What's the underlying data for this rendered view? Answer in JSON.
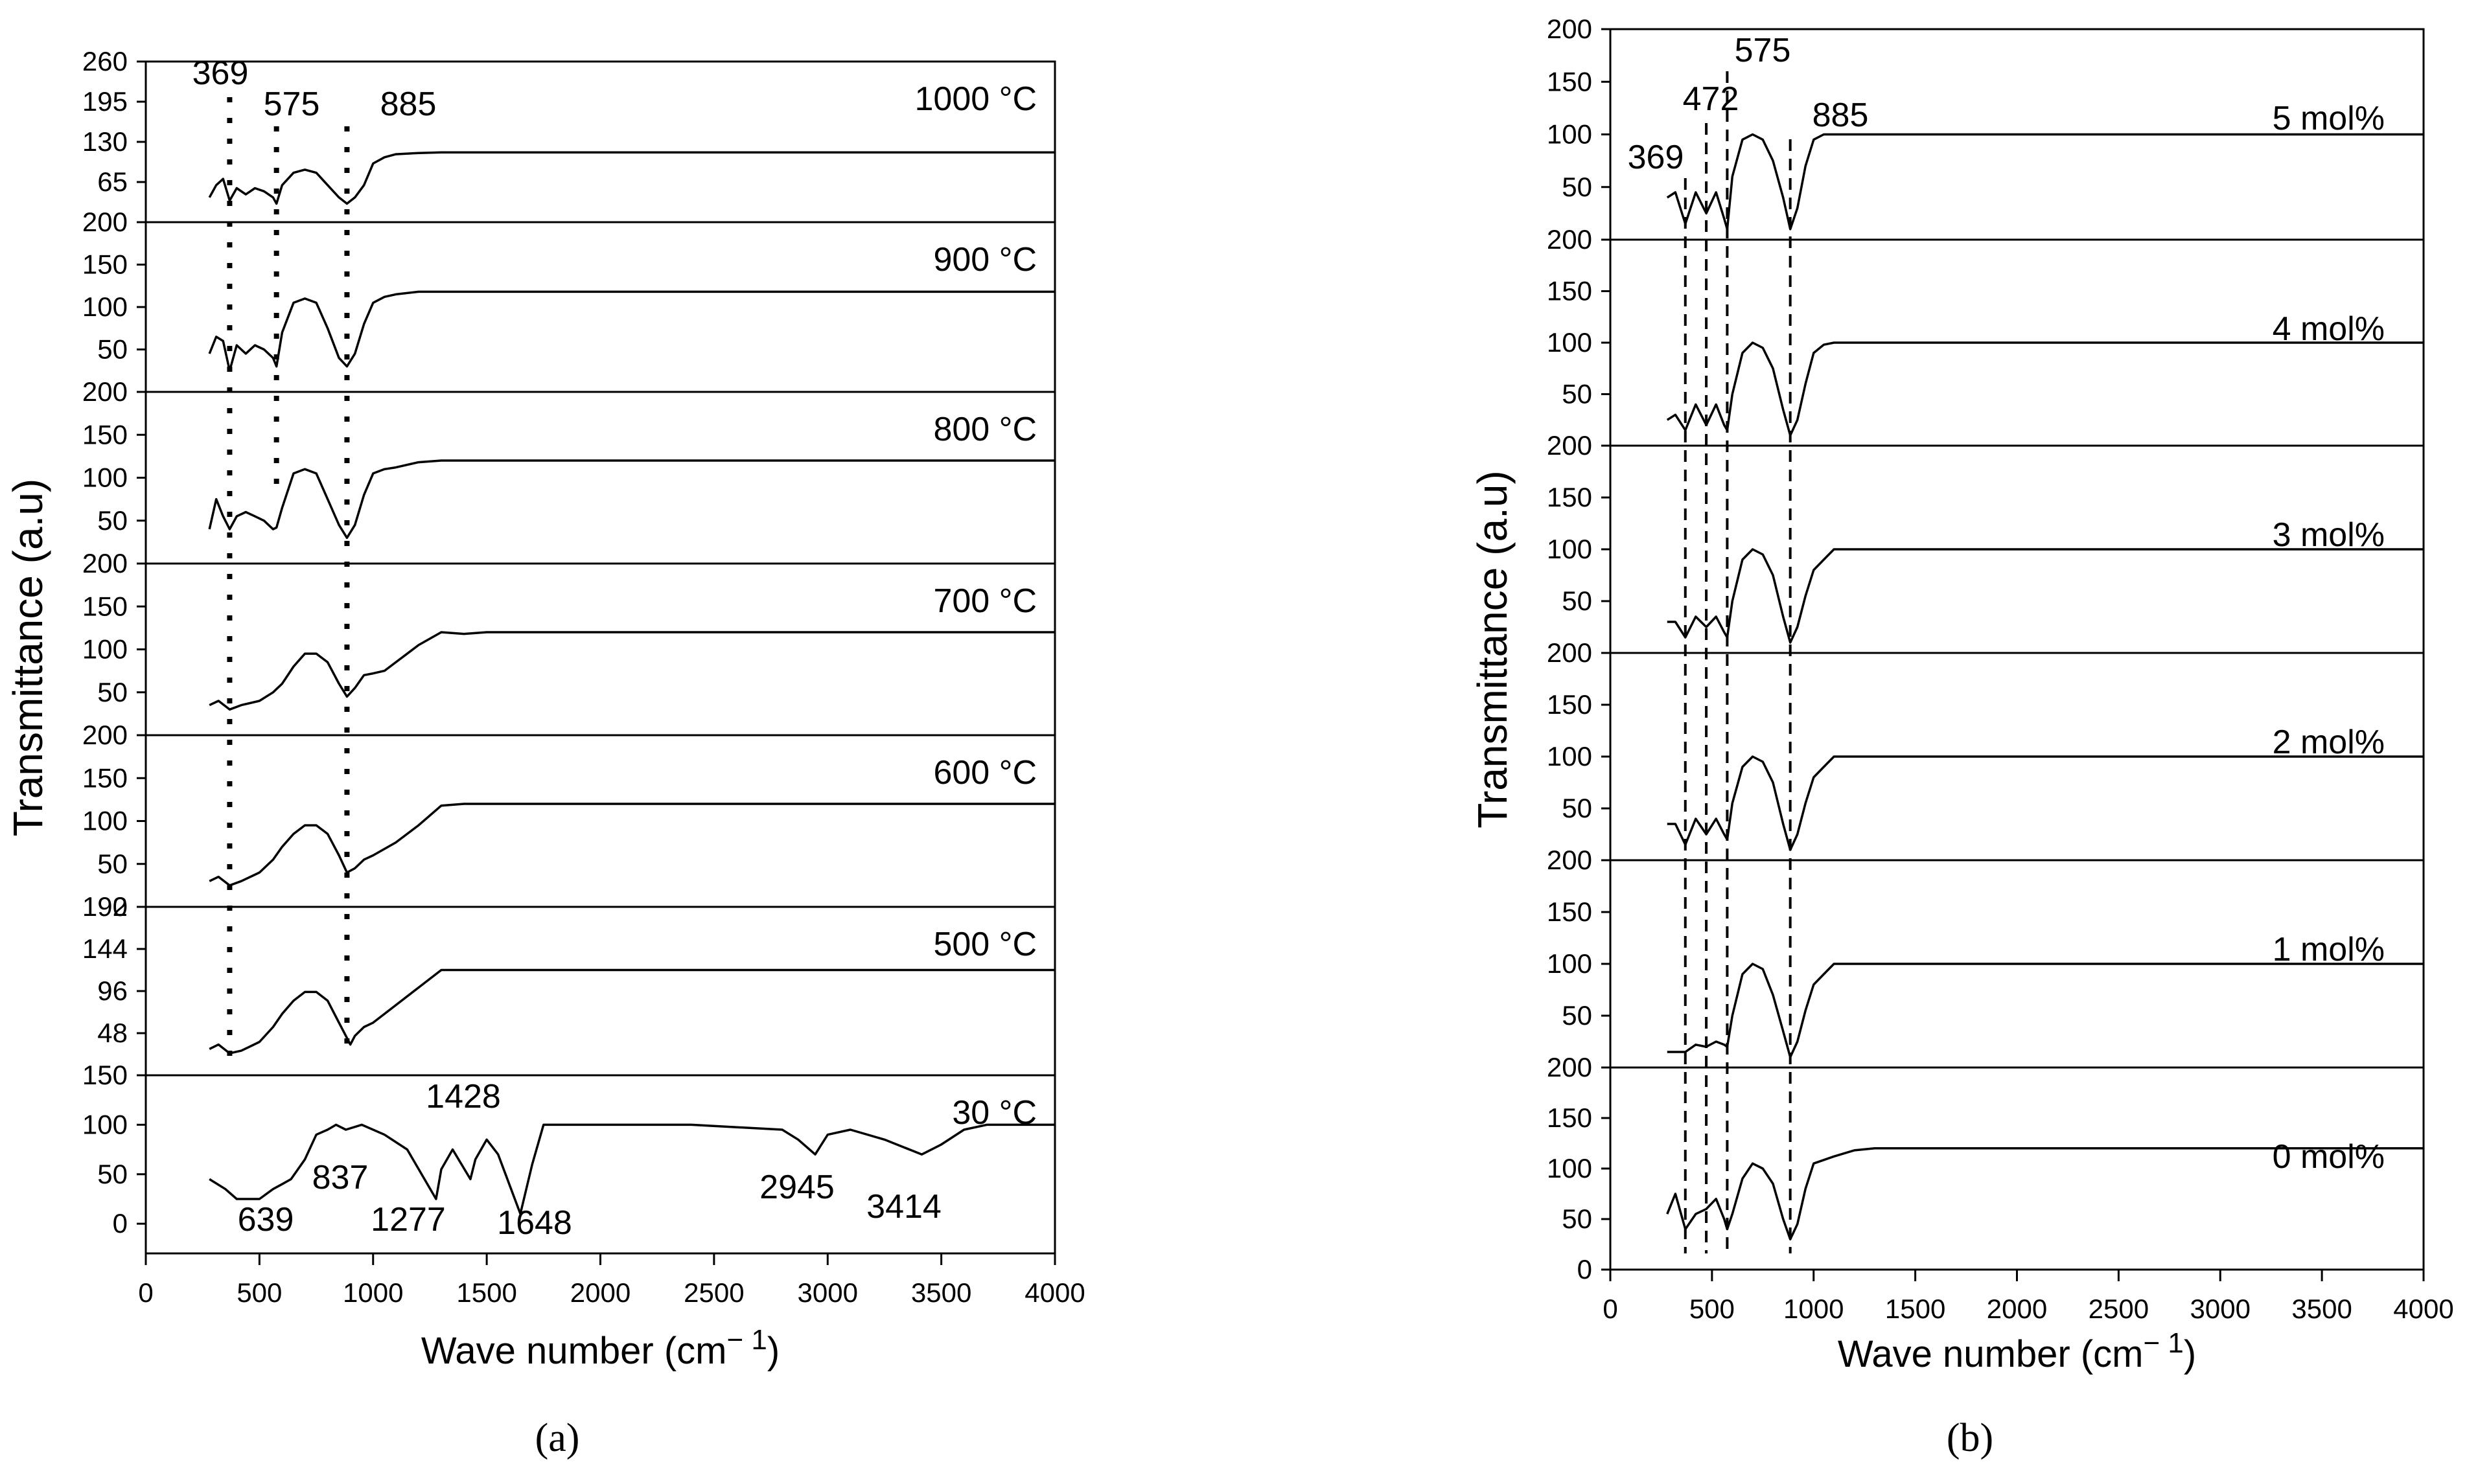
{
  "figure": {
    "caption_a": "(a)",
    "caption_b": "(b)"
  },
  "chart_data": [
    {
      "type": "line",
      "panel": "a",
      "title": "",
      "xlabel": "Wave number (cm⁻¹)",
      "xlabel_main": "Wave number (cm",
      "xlabel_sup": "− 1",
      "xlabel_close": ")",
      "ylabel": "Transmittance (a.u)",
      "xlim": [
        0,
        4000
      ],
      "xticks": [
        0,
        500,
        1000,
        1500,
        2000,
        2500,
        3000,
        3500,
        4000
      ],
      "stack_order": "top-to-bottom",
      "series": [
        {
          "name": "1000 °C",
          "ylim": [
            0,
            260
          ],
          "yticks": [
            65,
            130,
            195,
            260
          ],
          "baseline_tick": "",
          "x": [
            280,
            310,
            340,
            369,
            400,
            440,
            480,
            520,
            560,
            575,
            600,
            650,
            700,
            750,
            800,
            850,
            885,
            920,
            960,
            1000,
            1050,
            1100,
            1200,
            1300,
            4000
          ],
          "y": [
            40,
            60,
            70,
            35,
            55,
            45,
            55,
            50,
            40,
            30,
            60,
            80,
            85,
            80,
            60,
            40,
            30,
            40,
            60,
            95,
            105,
            110,
            112,
            113,
            113
          ]
        },
        {
          "name": "900 °C",
          "ylim": [
            0,
            200
          ],
          "yticks": [
            50,
            100,
            150,
            200
          ],
          "baseline_tick": "",
          "x": [
            280,
            310,
            340,
            369,
            400,
            440,
            480,
            520,
            560,
            575,
            600,
            650,
            700,
            750,
            800,
            850,
            885,
            920,
            960,
            1000,
            1050,
            1100,
            1200,
            1300,
            4000
          ],
          "y": [
            45,
            65,
            60,
            25,
            55,
            45,
            55,
            50,
            40,
            30,
            70,
            105,
            110,
            105,
            75,
            40,
            30,
            45,
            80,
            105,
            112,
            115,
            118,
            118,
            118
          ]
        },
        {
          "name": "800 °C",
          "ylim": [
            0,
            200
          ],
          "yticks": [
            50,
            100,
            150,
            200
          ],
          "baseline_tick": "",
          "x": [
            280,
            310,
            340,
            369,
            400,
            440,
            480,
            520,
            560,
            575,
            600,
            650,
            700,
            750,
            800,
            850,
            885,
            920,
            960,
            1000,
            1050,
            1100,
            1200,
            1300,
            4000
          ],
          "y": [
            40,
            75,
            55,
            40,
            55,
            60,
            55,
            50,
            40,
            42,
            65,
            105,
            110,
            105,
            75,
            45,
            30,
            45,
            80,
            105,
            110,
            112,
            118,
            120,
            120
          ]
        },
        {
          "name": "700 °C",
          "ylim": [
            0,
            200
          ],
          "yticks": [
            50,
            100,
            150,
            200
          ],
          "baseline_tick": "",
          "x": [
            280,
            320,
            369,
            420,
            500,
            560,
            600,
            650,
            700,
            750,
            800,
            850,
            885,
            920,
            960,
            1000,
            1050,
            1100,
            1200,
            1300,
            1400,
            1500,
            4000
          ],
          "y": [
            35,
            40,
            30,
            35,
            40,
            50,
            60,
            80,
            95,
            95,
            85,
            60,
            45,
            55,
            70,
            72,
            75,
            85,
            105,
            120,
            118,
            120,
            120
          ]
        },
        {
          "name": "600 °C",
          "ylim": [
            0,
            200
          ],
          "yticks": [
            50,
            100,
            150,
            200
          ],
          "baseline_tick": "0",
          "x": [
            280,
            320,
            369,
            420,
            500,
            560,
            600,
            650,
            700,
            750,
            800,
            850,
            885,
            920,
            960,
            1000,
            1100,
            1200,
            1300,
            1400,
            1500,
            4000
          ],
          "y": [
            30,
            35,
            25,
            30,
            40,
            55,
            70,
            85,
            95,
            95,
            85,
            60,
            40,
            45,
            55,
            60,
            75,
            95,
            118,
            120,
            120,
            120
          ]
        },
        {
          "name": "500 °C",
          "ylim": [
            0,
            192
          ],
          "yticks": [
            48,
            96,
            144,
            192
          ],
          "baseline_tick": "",
          "x": [
            280,
            320,
            369,
            420,
            500,
            560,
            600,
            650,
            700,
            750,
            800,
            850,
            900,
            920,
            960,
            1000,
            1100,
            1200,
            1300,
            1400,
            4000
          ],
          "y": [
            30,
            35,
            25,
            28,
            38,
            55,
            70,
            85,
            95,
            95,
            85,
            60,
            35,
            45,
            55,
            60,
            80,
            100,
            120,
            120,
            120
          ]
        },
        {
          "name": "30 °C",
          "ylim": [
            -30,
            150
          ],
          "yticks": [
            0,
            50,
            100,
            150
          ],
          "baseline_tick": "",
          "x": [
            280,
            350,
            400,
            500,
            560,
            600,
            639,
            700,
            750,
            800,
            837,
            880,
            950,
            1050,
            1150,
            1277,
            1300,
            1350,
            1428,
            1450,
            1500,
            1550,
            1648,
            1700,
            1750,
            1800,
            2000,
            2400,
            2800,
            2870,
            2945,
            3000,
            3100,
            3250,
            3414,
            3500,
            3600,
            3700,
            4000
          ],
          "y": [
            45,
            35,
            25,
            25,
            35,
            40,
            45,
            65,
            90,
            95,
            100,
            95,
            100,
            90,
            75,
            25,
            55,
            75,
            45,
            65,
            85,
            70,
            10,
            60,
            100,
            100,
            100,
            100,
            95,
            85,
            70,
            90,
            95,
            85,
            70,
            80,
            95,
            100,
            100
          ]
        }
      ],
      "annotations": [
        {
          "text": "369",
          "x": 369
        },
        {
          "text": "575",
          "x": 575
        },
        {
          "text": "885",
          "x": 885
        },
        {
          "text": "639",
          "x": 639
        },
        {
          "text": "837",
          "x": 837
        },
        {
          "text": "1277",
          "x": 1277
        },
        {
          "text": "1428",
          "x": 1428
        },
        {
          "text": "1648",
          "x": 1648
        },
        {
          "text": "2945",
          "x": 2945
        },
        {
          "text": "3414",
          "x": 3414
        }
      ],
      "guide_lines": [
        369,
        575,
        885
      ]
    },
    {
      "type": "line",
      "panel": "b",
      "title": "",
      "xlabel": "Wave number (cm⁻¹)",
      "xlabel_main": "Wave number (cm",
      "xlabel_sup": "− 1",
      "xlabel_close": ")",
      "ylabel": "Transmittance (a.u)",
      "xlim": [
        0,
        4000
      ],
      "xticks": [
        0,
        500,
        1000,
        1500,
        2000,
        2500,
        3000,
        3500,
        4000
      ],
      "stack_order": "top-to-bottom",
      "series": [
        {
          "name": "5 mol%",
          "ylim": [
            0,
            200
          ],
          "yticks": [
            50,
            100,
            150,
            200
          ],
          "x": [
            280,
            320,
            369,
            420,
            472,
            520,
            560,
            575,
            600,
            650,
            700,
            750,
            800,
            850,
            885,
            920,
            960,
            1000,
            1050,
            4000
          ],
          "y": [
            40,
            45,
            15,
            45,
            25,
            45,
            20,
            10,
            60,
            95,
            100,
            95,
            75,
            40,
            10,
            30,
            70,
            95,
            100,
            100
          ]
        },
        {
          "name": "4 mol%",
          "ylim": [
            0,
            200
          ],
          "yticks": [
            50,
            100,
            150,
            200
          ],
          "x": [
            280,
            320,
            369,
            420,
            472,
            520,
            560,
            575,
            600,
            650,
            700,
            750,
            800,
            850,
            885,
            920,
            960,
            1000,
            1050,
            1100,
            4000
          ],
          "y": [
            25,
            30,
            15,
            40,
            20,
            40,
            20,
            15,
            50,
            90,
            100,
            95,
            75,
            35,
            10,
            25,
            60,
            90,
            98,
            100,
            100
          ]
        },
        {
          "name": "3 mol%",
          "ylim": [
            0,
            200
          ],
          "yticks": [
            50,
            100,
            150,
            200
          ],
          "x": [
            280,
            320,
            369,
            420,
            472,
            520,
            560,
            575,
            600,
            650,
            700,
            750,
            800,
            850,
            885,
            920,
            960,
            1000,
            1050,
            1100,
            4000
          ],
          "y": [
            30,
            30,
            15,
            35,
            25,
            35,
            20,
            15,
            50,
            90,
            100,
            95,
            75,
            35,
            10,
            25,
            55,
            80,
            90,
            100,
            100
          ]
        },
        {
          "name": "2 mol%",
          "ylim": [
            0,
            200
          ],
          "yticks": [
            50,
            100,
            150,
            200
          ],
          "x": [
            280,
            320,
            369,
            420,
            472,
            520,
            560,
            575,
            600,
            650,
            700,
            750,
            800,
            850,
            885,
            920,
            960,
            1000,
            1050,
            1100,
            4000
          ],
          "y": [
            35,
            35,
            15,
            40,
            25,
            40,
            25,
            20,
            55,
            90,
            100,
            95,
            75,
            35,
            10,
            25,
            55,
            80,
            90,
            100,
            100
          ]
        },
        {
          "name": "1 mol%",
          "ylim": [
            0,
            200
          ],
          "yticks": [
            50,
            100,
            150,
            200
          ],
          "x": [
            280,
            320,
            369,
            420,
            472,
            520,
            560,
            575,
            600,
            650,
            700,
            750,
            800,
            850,
            885,
            920,
            960,
            1000,
            1050,
            1100,
            4000
          ],
          "y": [
            15,
            15,
            15,
            22,
            20,
            25,
            22,
            20,
            50,
            90,
            100,
            95,
            70,
            35,
            10,
            25,
            55,
            80,
            90,
            100,
            100
          ]
        },
        {
          "name": "0 mol%",
          "ylim": [
            0,
            200
          ],
          "yticks": [
            0,
            50,
            100,
            150,
            200
          ],
          "x": [
            280,
            320,
            369,
            420,
            472,
            520,
            560,
            575,
            600,
            650,
            700,
            750,
            800,
            850,
            885,
            920,
            960,
            1000,
            1100,
            1200,
            1300,
            4000
          ],
          "y": [
            55,
            75,
            40,
            55,
            60,
            70,
            50,
            40,
            55,
            90,
            105,
            100,
            85,
            50,
            30,
            45,
            80,
            105,
            112,
            118,
            120,
            120
          ]
        }
      ],
      "annotations": [
        {
          "text": "369",
          "x": 369
        },
        {
          "text": "472",
          "x": 472
        },
        {
          "text": "575",
          "x": 575
        },
        {
          "text": "885",
          "x": 885
        }
      ],
      "guide_lines": [
        369,
        472,
        575,
        885
      ]
    }
  ]
}
